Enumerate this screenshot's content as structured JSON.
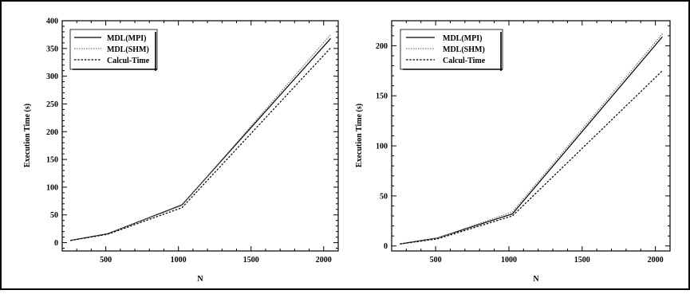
{
  "chart_data": [
    {
      "type": "line",
      "xlabel": "N",
      "ylabel": "Execution Time (s)",
      "xlim": [
        200,
        2100
      ],
      "ylim": [
        -15,
        400
      ],
      "xticks": [
        500,
        1000,
        1500,
        2000
      ],
      "yticks": [
        0,
        50,
        100,
        150,
        200,
        250,
        300,
        350,
        400
      ],
      "grid": false,
      "legend_position": "top-left",
      "series": [
        {
          "name": "MDL(MPI)",
          "style": "solid",
          "color": "#000000",
          "x": [
            256,
            512,
            1024,
            2048
          ],
          "y": [
            4,
            16,
            68,
            368
          ]
        },
        {
          "name": "MDL(SHM)",
          "style": "dotted",
          "color": "#777777",
          "x": [
            256,
            512,
            1024,
            2048
          ],
          "y": [
            4,
            16,
            67,
            375
          ]
        },
        {
          "name": "Calcul-Time",
          "style": "dashed",
          "color": "#000000",
          "x": [
            256,
            512,
            1024,
            2048
          ],
          "y": [
            4,
            15,
            63,
            351
          ]
        }
      ]
    },
    {
      "type": "line",
      "xlabel": "N",
      "ylabel": "Execution Time (s)",
      "xlim": [
        200,
        2100
      ],
      "ylim": [
        -5,
        225
      ],
      "xticks": [
        500,
        1000,
        1500,
        2000
      ],
      "yticks": [
        0,
        50,
        100,
        150,
        200
      ],
      "grid": false,
      "legend_position": "top-left",
      "series": [
        {
          "name": "MDL(MPI)",
          "style": "solid",
          "color": "#000000",
          "x": [
            256,
            512,
            1024,
            2048
          ],
          "y": [
            2,
            8,
            32,
            209
          ]
        },
        {
          "name": "MDL(SHM)",
          "style": "dotted",
          "color": "#777777",
          "x": [
            256,
            512,
            1024,
            2048
          ],
          "y": [
            2,
            8,
            34,
            212
          ]
        },
        {
          "name": "Calcul-Time",
          "style": "dashed",
          "color": "#000000",
          "x": [
            256,
            512,
            1024,
            2048
          ],
          "y": [
            2,
            7,
            30,
            175
          ]
        }
      ]
    }
  ]
}
